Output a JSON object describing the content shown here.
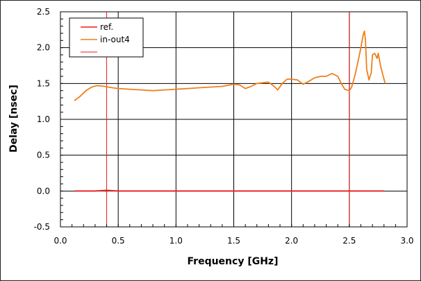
{
  "chart_data": {
    "type": "line",
    "xlabel": "Frequency [GHz]",
    "ylabel": "Delay [nsec]",
    "xlim": [
      0.0,
      3.0
    ],
    "ylim": [
      -0.5,
      2.5
    ],
    "x_ticks": [
      "0.0",
      "0.5",
      "1.0",
      "1.5",
      "2.0",
      "2.5",
      "3.0"
    ],
    "y_ticks": [
      "-0.5",
      "0.0",
      "0.5",
      "1.0",
      "1.5",
      "2.0",
      "2.5"
    ],
    "grid": true,
    "legend": {
      "placement": "top-left",
      "entries": [
        {
          "label": "ref.",
          "color": "#e81c1c"
        },
        {
          "label": "in-out4",
          "color": "#f07f1a"
        },
        {
          "label": "",
          "color": "#e81c1c"
        }
      ]
    },
    "vertical_markers": [
      {
        "x": 0.4,
        "color": "#e81c1c"
      },
      {
        "x": 2.5,
        "color": "#e81c1c"
      }
    ],
    "series": [
      {
        "name": "ref.",
        "color": "#e81c1c",
        "x": [
          0.12,
          0.2,
          0.3,
          0.4,
          0.5,
          0.6,
          0.8,
          1.0,
          1.2,
          1.4,
          1.6,
          1.8,
          2.0,
          2.2,
          2.4,
          2.6,
          2.8
        ],
        "y": [
          0.0,
          0.0,
          0.0,
          0.01,
          0.0,
          0.0,
          0.0,
          0.0,
          0.0,
          0.0,
          0.0,
          0.0,
          0.0,
          0.0,
          0.0,
          0.0,
          0.0
        ]
      },
      {
        "name": "in-out4",
        "color": "#f07f1a",
        "x": [
          0.12,
          0.17,
          0.22,
          0.27,
          0.32,
          0.38,
          0.45,
          0.5,
          0.6,
          0.7,
          0.8,
          0.9,
          1.0,
          1.1,
          1.2,
          1.3,
          1.4,
          1.5,
          1.55,
          1.6,
          1.65,
          1.7,
          1.8,
          1.85,
          1.88,
          1.92,
          1.96,
          2.0,
          2.05,
          2.1,
          2.15,
          2.2,
          2.25,
          2.3,
          2.35,
          2.4,
          2.43,
          2.46,
          2.5,
          2.52,
          2.55,
          2.58,
          2.6,
          2.62,
          2.63,
          2.64,
          2.65,
          2.67,
          2.69,
          2.7,
          2.72,
          2.74,
          2.75,
          2.77,
          2.79,
          2.81
        ],
        "y": [
          1.26,
          1.32,
          1.4,
          1.45,
          1.47,
          1.46,
          1.44,
          1.43,
          1.42,
          1.41,
          1.4,
          1.41,
          1.42,
          1.43,
          1.44,
          1.45,
          1.46,
          1.49,
          1.48,
          1.43,
          1.46,
          1.5,
          1.52,
          1.46,
          1.41,
          1.5,
          1.56,
          1.56,
          1.55,
          1.49,
          1.53,
          1.58,
          1.6,
          1.6,
          1.64,
          1.6,
          1.5,
          1.42,
          1.4,
          1.45,
          1.62,
          1.84,
          2.0,
          2.18,
          2.23,
          2.1,
          1.7,
          1.55,
          1.65,
          1.9,
          1.92,
          1.85,
          1.92,
          1.75,
          1.62,
          1.5
        ]
      }
    ]
  }
}
